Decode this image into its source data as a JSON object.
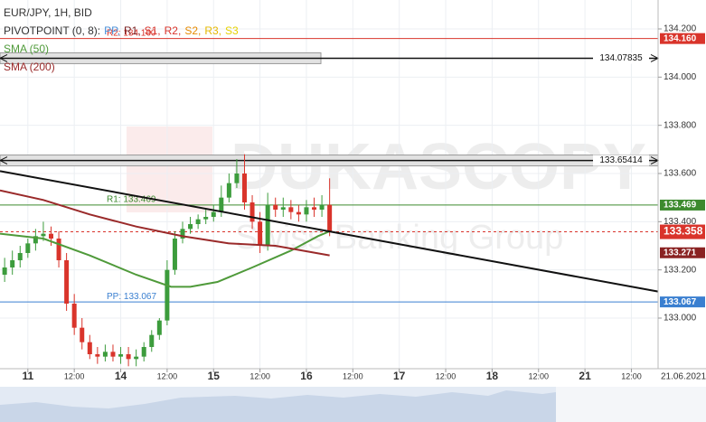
{
  "chart_data": {
    "type": "candlestick",
    "title": "EUR/JPY, 1H, BID",
    "pivot_legend": {
      "title": "PIVOTPOINT (0, 8):",
      "items": [
        {
          "label": "PP,",
          "color": "#4a90d9"
        },
        {
          "label": "R1,",
          "color": "#7a1f1f"
        },
        {
          "label": "S1,",
          "color": "#d9342b"
        },
        {
          "label": "R2,",
          "color": "#d9342b"
        },
        {
          "label": "S2,",
          "color": "#e68a00"
        },
        {
          "label": "R3,",
          "color": "#e6b800"
        },
        {
          "label": "S3",
          "color": "#e6d200"
        }
      ]
    },
    "watermark": {
      "brand": "DUKASCOPY",
      "tagline": "Swiss Banking Group"
    },
    "x_axis_end_label": "21.06.2021",
    "xlim": [
      -7.2,
      162.9
    ],
    "ylim": [
      132.79,
      134.32
    ],
    "grid": true,
    "xticks": [
      {
        "value": 0,
        "label": "11"
      },
      {
        "value": 12,
        "label": "12:00"
      },
      {
        "value": 24,
        "label": "14"
      },
      {
        "value": 36,
        "label": "12:00"
      },
      {
        "value": 48,
        "label": "15"
      },
      {
        "value": 60,
        "label": "12:00"
      },
      {
        "value": 72,
        "label": "16"
      },
      {
        "value": 84,
        "label": "12:00"
      },
      {
        "value": 96,
        "label": "17"
      },
      {
        "value": 108,
        "label": "12:00"
      },
      {
        "value": 120,
        "label": "18"
      },
      {
        "value": 132,
        "label": "12:00"
      },
      {
        "value": 144,
        "label": "21"
      },
      {
        "value": 156,
        "label": "12:00"
      }
    ],
    "yticks": [
      {
        "value": 134.2,
        "label": "134.200"
      },
      {
        "value": 134.0,
        "label": "134.000"
      },
      {
        "value": 133.8,
        "label": "133.800"
      },
      {
        "value": 133.6,
        "label": "133.600"
      },
      {
        "value": 133.4,
        "label": "133.400"
      },
      {
        "value": 133.2,
        "label": "133.200"
      },
      {
        "value": 133.0,
        "label": "133.000"
      }
    ],
    "x": [
      -6,
      -4,
      -2,
      0,
      2,
      4,
      6,
      8,
      10,
      12,
      14,
      16,
      18,
      20,
      22,
      24,
      26,
      28,
      30,
      32,
      34,
      36,
      38,
      40,
      42,
      44,
      46,
      48,
      50,
      52,
      54,
      56,
      58,
      60,
      62,
      64,
      66,
      68,
      70,
      72,
      74,
      76,
      78
    ],
    "open": [
      133.18,
      133.21,
      133.24,
      133.27,
      133.31,
      133.34,
      133.35,
      133.33,
      133.24,
      133.06,
      132.96,
      132.9,
      132.85,
      132.84,
      132.86,
      132.84,
      132.85,
      132.83,
      132.84,
      132.88,
      132.93,
      132.99,
      133.2,
      133.33,
      133.37,
      133.39,
      133.41,
      133.42,
      133.44,
      133.5,
      133.56,
      133.6,
      133.48,
      133.4,
      133.3,
      133.47,
      133.45,
      133.46,
      133.44,
      133.43,
      133.46,
      133.45,
      133.47
    ],
    "high": [
      133.25,
      133.28,
      133.3,
      133.33,
      133.37,
      133.4,
      133.38,
      133.36,
      133.27,
      133.1,
      133.0,
      132.93,
      132.88,
      132.89,
      132.89,
      132.88,
      132.88,
      132.87,
      132.9,
      132.95,
      133.0,
      133.24,
      133.36,
      133.4,
      133.42,
      133.43,
      133.45,
      133.47,
      133.55,
      133.6,
      133.66,
      133.68,
      133.51,
      133.44,
      133.52,
      133.5,
      133.5,
      133.49,
      133.47,
      133.49,
      133.5,
      133.51,
      133.58
    ],
    "low": [
      133.15,
      133.18,
      133.21,
      133.25,
      133.28,
      133.32,
      133.3,
      133.21,
      133.03,
      132.93,
      132.87,
      132.83,
      132.81,
      132.82,
      132.82,
      132.81,
      132.8,
      132.8,
      132.82,
      132.86,
      132.91,
      132.97,
      133.18,
      133.31,
      133.35,
      133.37,
      133.39,
      133.4,
      133.42,
      133.48,
      133.54,
      133.45,
      133.37,
      133.27,
      133.28,
      133.42,
      133.42,
      133.41,
      133.4,
      133.4,
      133.42,
      133.42,
      133.34
    ],
    "close": [
      133.21,
      133.24,
      133.27,
      133.31,
      133.34,
      133.35,
      133.33,
      133.24,
      133.06,
      132.96,
      132.9,
      132.85,
      132.84,
      132.86,
      132.84,
      132.85,
      132.83,
      132.84,
      132.88,
      132.93,
      132.99,
      133.2,
      133.33,
      133.37,
      133.39,
      133.41,
      133.42,
      133.44,
      133.5,
      133.56,
      133.6,
      133.48,
      133.4,
      133.3,
      133.47,
      133.45,
      133.46,
      133.44,
      133.43,
      133.46,
      133.45,
      133.47,
      133.358
    ],
    "up_color": "#3c9c3c",
    "down_color": "#d9342b",
    "series": [
      {
        "name": "SMA (50)",
        "color": "#4f9a3a",
        "x": [
          -7.2,
          4,
          16,
          28,
          37,
          42,
          49,
          58,
          68,
          75,
          78
        ],
        "values": [
          133.35,
          133.33,
          133.26,
          133.18,
          133.13,
          133.13,
          133.15,
          133.21,
          133.28,
          133.34,
          133.36
        ]
      },
      {
        "name": "SMA (200)",
        "color": "#9a2a2a",
        "x": [
          -7.2,
          4,
          16,
          28,
          40,
          52,
          64,
          78
        ],
        "values": [
          133.53,
          133.49,
          133.43,
          133.38,
          133.34,
          133.31,
          133.3,
          133.26
        ]
      }
    ],
    "trendline": {
      "color": "#111111",
      "x": [
        -7.2,
        162.9
      ],
      "values": [
        133.61,
        133.11
      ]
    },
    "levels": [
      {
        "value": 134.16,
        "label": "134.160",
        "note": "R2: 134.160",
        "color": "#d9342b",
        "kind": "pivot"
      },
      {
        "value": 134.07835,
        "label": "134.07835",
        "color": "#111111",
        "kind": "drawn"
      },
      {
        "value": 133.65414,
        "label": "133.65414",
        "color": "#111111",
        "kind": "drawn"
      },
      {
        "value": 133.469,
        "label": "133.469",
        "note": "R1: 133.469",
        "color": "#3c8a2e",
        "kind": "pivot"
      },
      {
        "value": 133.358,
        "label": "133.358",
        "color": "#d9342b",
        "kind": "price"
      },
      {
        "value": 133.271,
        "label": "133.271",
        "color": "#8a2222",
        "kind": "sma"
      },
      {
        "value": 133.067,
        "label": "133.067",
        "note": "PP: 133.067",
        "color": "#3a7fd0",
        "kind": "pivot"
      }
    ]
  }
}
